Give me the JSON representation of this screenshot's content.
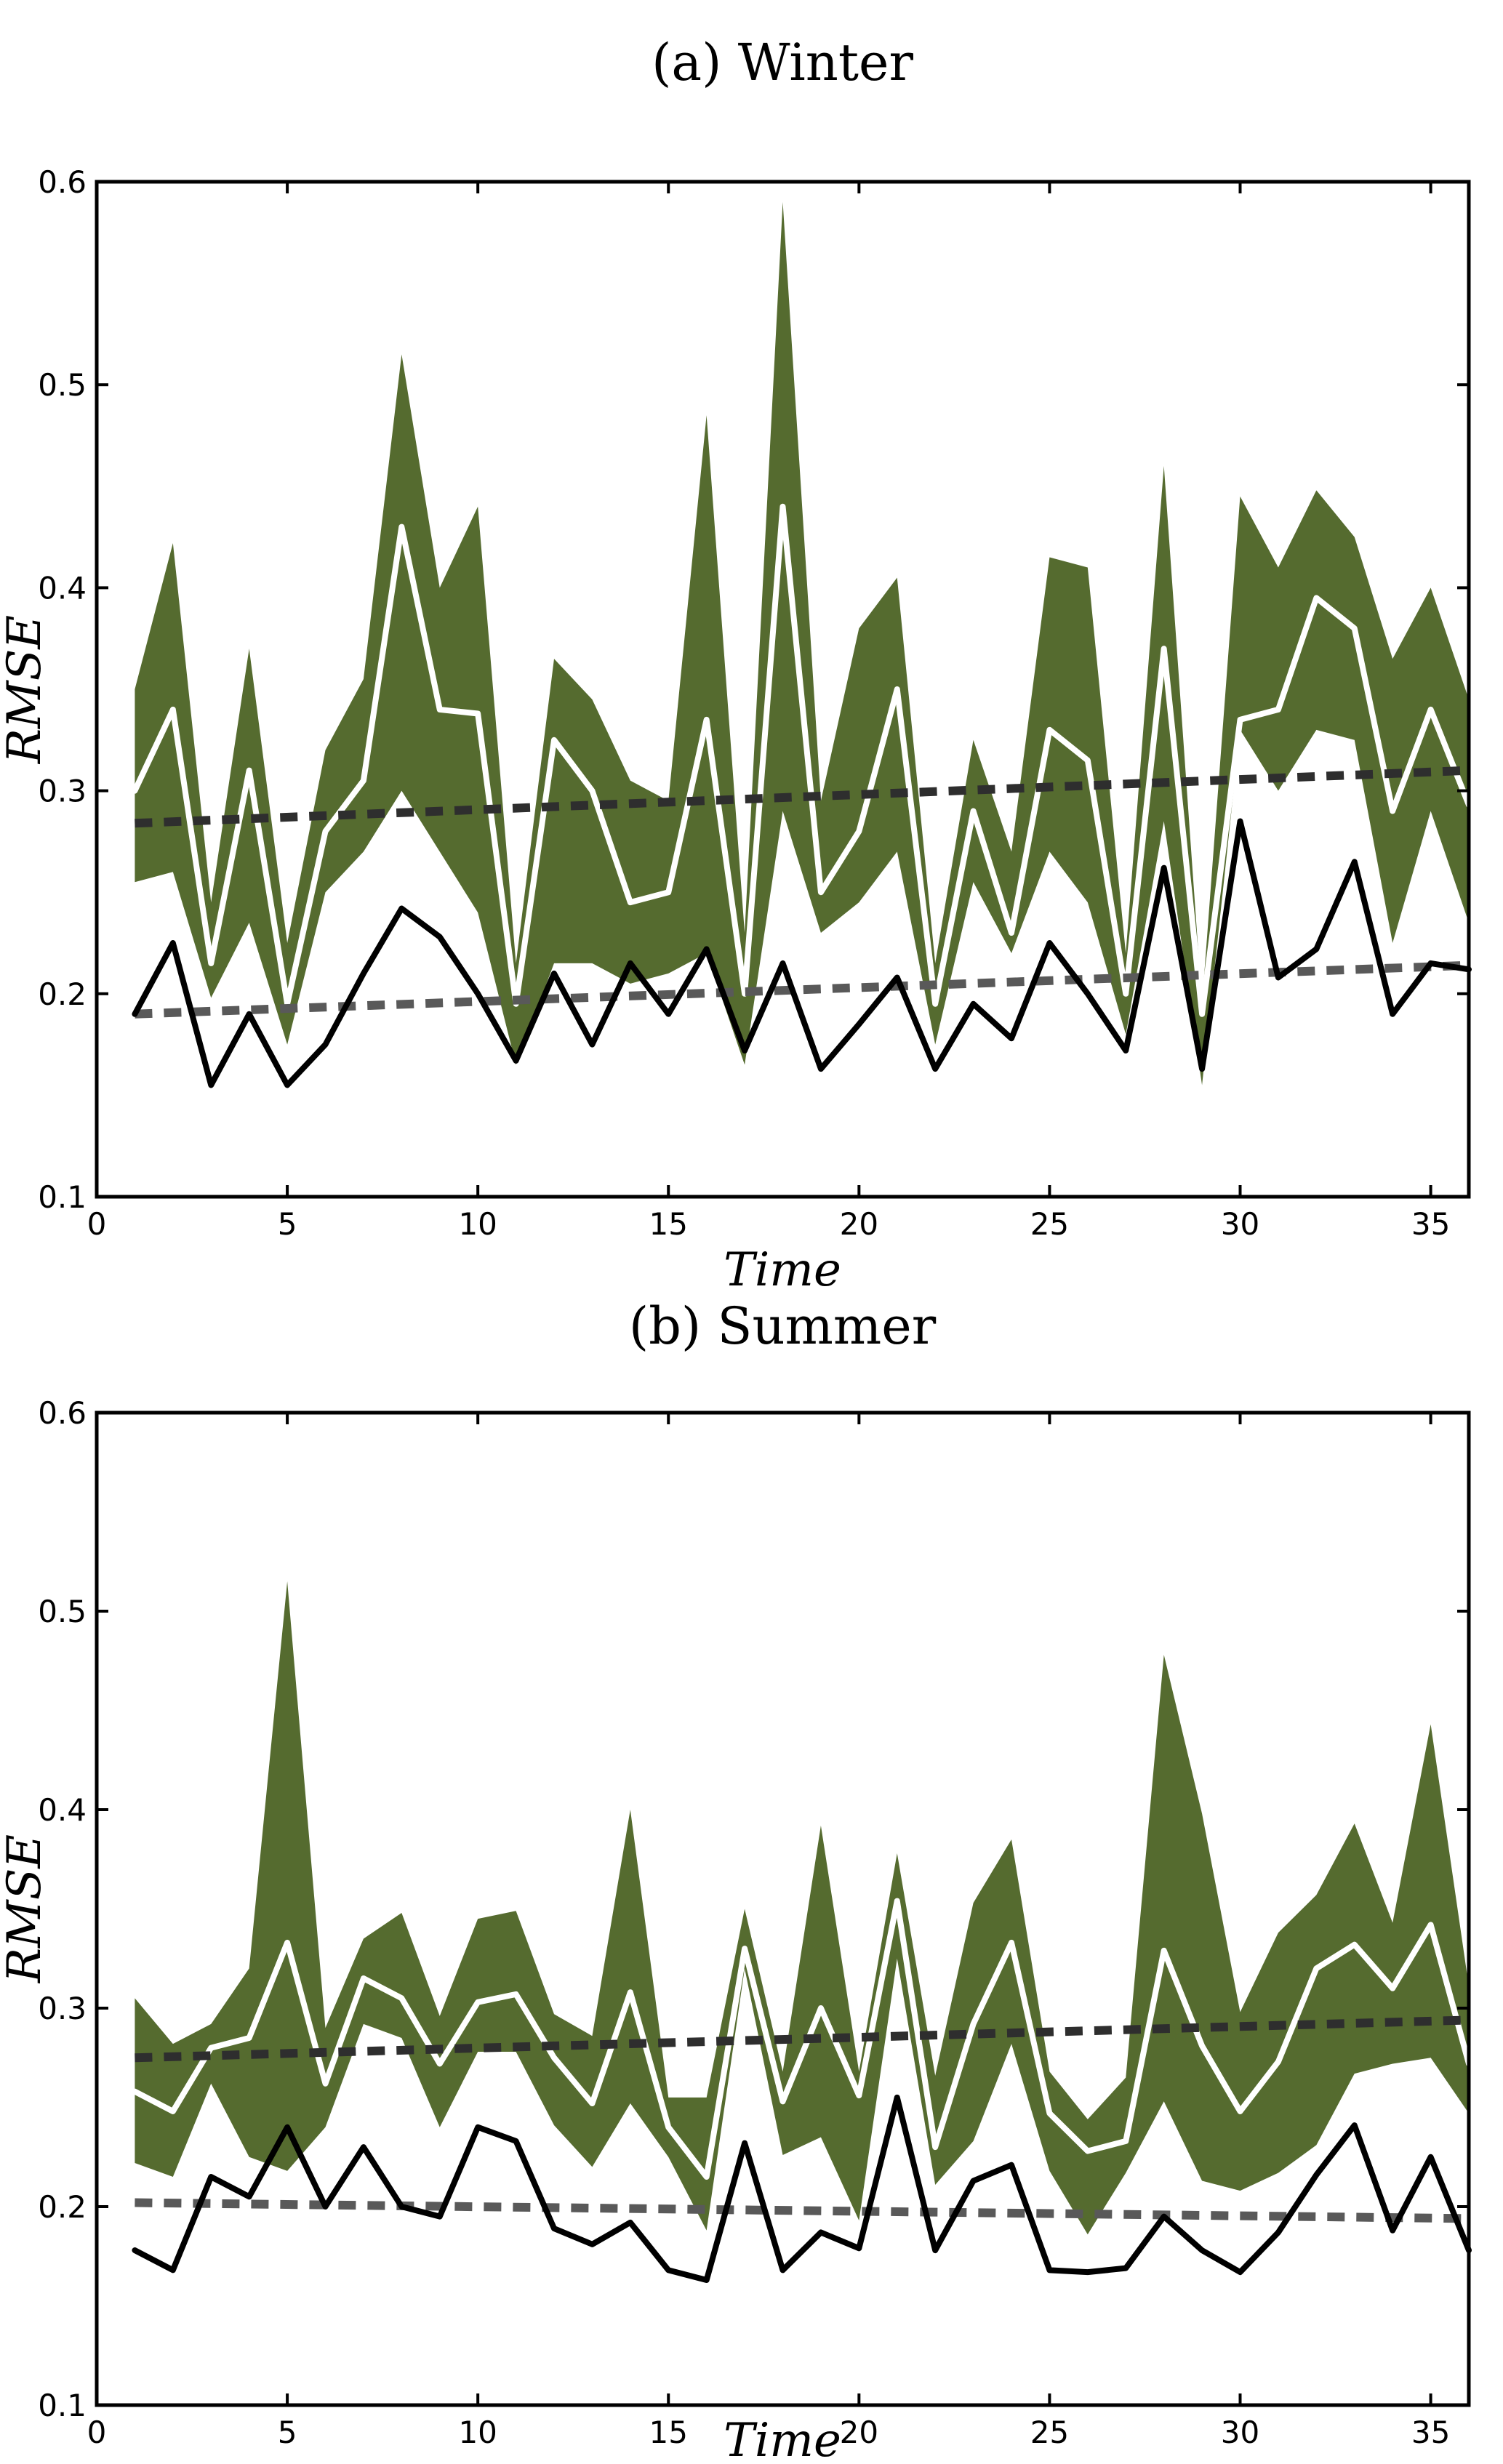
{
  "page": {
    "background": "#ffffff"
  },
  "colors": {
    "band_fill": "#556b2f",
    "center_line": "#ffffff",
    "black_line": "#000000",
    "trend_band_dashed": "#2e2e2e",
    "trend_black_dashed": "#595959",
    "axis": "#000000"
  },
  "chart_data": [
    {
      "type": "area",
      "panel_tag": "a",
      "title": "(a) Winter",
      "xlabel": "Time",
      "ylabel": "RMSE",
      "xlim": [
        0,
        36
      ],
      "ylim": [
        0.1,
        0.6
      ],
      "xticks": [
        0,
        5,
        10,
        15,
        20,
        25,
        30,
        35
      ],
      "yticks": [
        0.1,
        0.2,
        0.3,
        0.4,
        0.5,
        0.6
      ],
      "grid": false,
      "legend": "none",
      "x": [
        1,
        2,
        3,
        4,
        5,
        6,
        7,
        8,
        9,
        10,
        11,
        12,
        13,
        14,
        15,
        16,
        17,
        18,
        19,
        20,
        21,
        22,
        23,
        24,
        25,
        26,
        27,
        28,
        29,
        30,
        31,
        32,
        33,
        34,
        35,
        36
      ],
      "band_upper": [
        0.35,
        0.422,
        0.245,
        0.37,
        0.225,
        0.32,
        0.355,
        0.515,
        0.4,
        0.44,
        0.215,
        0.365,
        0.345,
        0.305,
        0.295,
        0.485,
        0.23,
        0.59,
        0.295,
        0.38,
        0.405,
        0.215,
        0.325,
        0.27,
        0.415,
        0.41,
        0.22,
        0.46,
        0.195,
        0.445,
        0.41,
        0.448,
        0.425,
        0.365,
        0.4,
        0.345
      ],
      "band_center_white_line": [
        0.3,
        0.34,
        0.215,
        0.31,
        0.195,
        0.28,
        0.305,
        0.43,
        0.34,
        0.338,
        0.195,
        0.325,
        0.3,
        0.245,
        0.25,
        0.335,
        0.2,
        0.44,
        0.25,
        0.28,
        0.35,
        0.195,
        0.29,
        0.23,
        0.33,
        0.315,
        0.2,
        0.37,
        0.19,
        0.335,
        0.34,
        0.395,
        0.38,
        0.29,
        0.34,
        0.293
      ],
      "band_lower": [
        0.255,
        0.26,
        0.198,
        0.235,
        0.175,
        0.25,
        0.27,
        0.3,
        0.27,
        0.24,
        0.165,
        0.215,
        0.215,
        0.205,
        0.21,
        0.22,
        0.165,
        0.29,
        0.23,
        0.245,
        0.27,
        0.175,
        0.255,
        0.22,
        0.27,
        0.245,
        0.18,
        0.285,
        0.155,
        0.33,
        0.3,
        0.33,
        0.325,
        0.225,
        0.29,
        0.235
      ],
      "black_line": [
        0.19,
        0.225,
        0.155,
        0.19,
        0.155,
        0.175,
        0.21,
        0.242,
        0.228,
        0.2,
        0.167,
        0.21,
        0.175,
        0.215,
        0.19,
        0.222,
        0.172,
        0.215,
        0.163,
        0.185,
        0.208,
        0.163,
        0.195,
        0.178,
        0.225,
        0.2,
        0.172,
        0.262,
        0.163,
        0.285,
        0.208,
        0.222,
        0.265,
        0.19,
        0.215,
        0.212
      ],
      "trend_band_dashed": {
        "x_start": 1,
        "x_end": 36,
        "y_start": 0.284,
        "y_end": 0.31
      },
      "trend_black_dashed": {
        "x_start": 1,
        "x_end": 36,
        "y_start": 0.19,
        "y_end": 0.214
      }
    },
    {
      "type": "area",
      "panel_tag": "b",
      "title": "(b) Summer",
      "xlabel": "Time",
      "ylabel": "RMSE",
      "xlim": [
        0,
        36
      ],
      "ylim": [
        0.1,
        0.6
      ],
      "xticks": [
        0,
        5,
        10,
        15,
        20,
        25,
        30,
        35
      ],
      "yticks": [
        0.1,
        0.2,
        0.3,
        0.4,
        0.5,
        0.6
      ],
      "grid": false,
      "legend": "none",
      "x": [
        1,
        2,
        3,
        4,
        5,
        6,
        7,
        8,
        9,
        10,
        11,
        12,
        13,
        14,
        15,
        16,
        17,
        18,
        19,
        20,
        21,
        22,
        23,
        24,
        25,
        26,
        27,
        28,
        29,
        30,
        31,
        32,
        33,
        34,
        35,
        36
      ],
      "band_upper": [
        0.305,
        0.282,
        0.292,
        0.32,
        0.515,
        0.29,
        0.335,
        0.348,
        0.296,
        0.345,
        0.349,
        0.297,
        0.286,
        0.4,
        0.255,
        0.255,
        0.35,
        0.268,
        0.392,
        0.268,
        0.378,
        0.266,
        0.353,
        0.385,
        0.268,
        0.244,
        0.265,
        0.478,
        0.398,
        0.298,
        0.338,
        0.357,
        0.393,
        0.343,
        0.443,
        0.311
      ],
      "band_center_white_line": [
        0.258,
        0.248,
        0.28,
        0.285,
        0.333,
        0.262,
        0.315,
        0.305,
        0.272,
        0.303,
        0.307,
        0.275,
        0.252,
        0.308,
        0.24,
        0.215,
        0.33,
        0.253,
        0.3,
        0.256,
        0.354,
        0.23,
        0.292,
        0.333,
        0.247,
        0.228,
        0.233,
        0.329,
        0.281,
        0.248,
        0.273,
        0.32,
        0.332,
        0.31,
        0.342,
        0.272
      ],
      "band_lower": [
        0.222,
        0.215,
        0.262,
        0.225,
        0.218,
        0.24,
        0.292,
        0.285,
        0.24,
        0.278,
        0.278,
        0.241,
        0.22,
        0.252,
        0.225,
        0.188,
        0.32,
        0.226,
        0.235,
        0.193,
        0.325,
        0.211,
        0.233,
        0.282,
        0.218,
        0.186,
        0.217,
        0.253,
        0.213,
        0.208,
        0.217,
        0.231,
        0.267,
        0.272,
        0.275,
        0.247
      ],
      "black_line": [
        0.178,
        0.168,
        0.215,
        0.205,
        0.24,
        0.2,
        0.23,
        0.2,
        0.195,
        0.24,
        0.233,
        0.189,
        0.181,
        0.192,
        0.168,
        0.163,
        0.232,
        0.168,
        0.187,
        0.179,
        0.255,
        0.178,
        0.213,
        0.221,
        0.168,
        0.167,
        0.169,
        0.195,
        0.178,
        0.167,
        0.187,
        0.216,
        0.241,
        0.188,
        0.225,
        0.178
      ],
      "trend_band_dashed": {
        "x_start": 1,
        "x_end": 36,
        "y_start": 0.275,
        "y_end": 0.294
      },
      "trend_black_dashed": {
        "x_start": 1,
        "x_end": 36,
        "y_start": 0.202,
        "y_end": 0.194
      }
    }
  ]
}
